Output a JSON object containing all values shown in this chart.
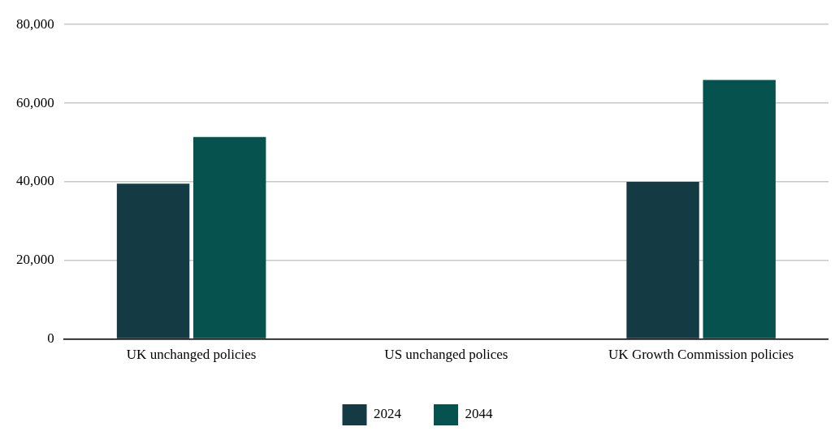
{
  "chart_data": {
    "type": "bar",
    "categories": [
      "UK unchanged policies",
      "US unchanged polices",
      "UK Growth Commission policies"
    ],
    "series": [
      {
        "name": "2024",
        "color": "#143a44",
        "values": [
          39500,
          null,
          40000
        ]
      },
      {
        "name": "2044",
        "color": "#06524f",
        "values": [
          51400,
          null,
          65900
        ]
      }
    ],
    "ylim": [
      0,
      80000
    ],
    "yticks": [
      {
        "value": 0,
        "label": "0"
      },
      {
        "value": 20000,
        "label": "20,000"
      },
      {
        "value": 40000,
        "label": "40,000"
      },
      {
        "value": 60000,
        "label": "60,000"
      },
      {
        "value": 80000,
        "label": "80,000"
      }
    ],
    "grid": "y",
    "legend": "bottom"
  }
}
